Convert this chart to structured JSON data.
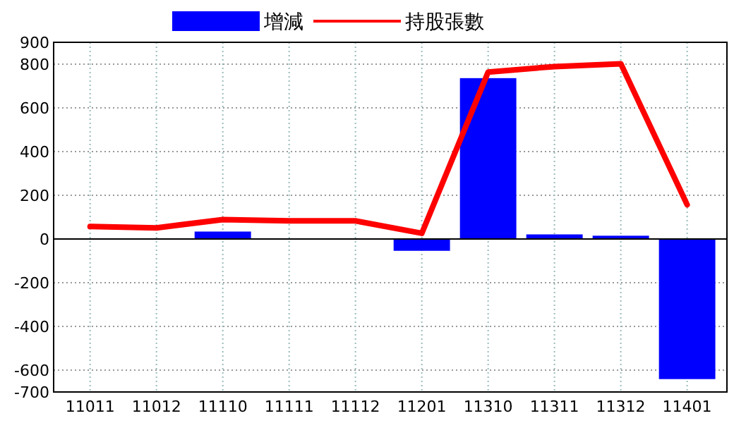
{
  "chart_data": {
    "type": "bar",
    "categories": [
      "11011",
      "11012",
      "11110",
      "11111",
      "11112",
      "11201",
      "11310",
      "11311",
      "11312",
      "11401"
    ],
    "series": [
      {
        "name": "增減",
        "color": "#0000ff",
        "values": [
          0,
          0,
          34,
          0,
          0,
          -54,
          736,
          21,
          15,
          -641
        ]
      },
      {
        "name": "持股張數",
        "type": "line",
        "color": "#ff0000",
        "values": [
          57,
          51,
          89,
          83,
          83,
          26,
          764,
          789,
          802,
          157
        ]
      }
    ],
    "ylim": [
      -700,
      900
    ],
    "yticks": [
      -700,
      -600,
      -400,
      -200,
      0,
      200,
      400,
      600,
      800,
      900
    ],
    "grid": true,
    "legend": "top"
  }
}
